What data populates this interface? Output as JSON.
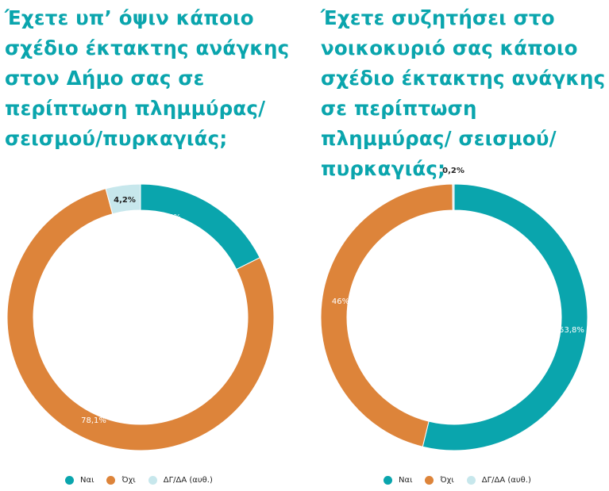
{
  "chart_data": [
    {
      "type": "pie",
      "title": "Έχετε υπ’ όψιν κάποιο σχέδιο έκτακτης ανάγκης στον Δήμο σας σε περίπτωση πλημμύρας/ σεισμού/πυρκαγιάς;",
      "categories": [
        "Ναι",
        "Όχι",
        "ΔΓ/ΔΑ (αυθ.)"
      ],
      "values": [
        17.6,
        78.1,
        4.2
      ],
      "labels": [
        "17,6%",
        "78,1%",
        "4,2%"
      ],
      "colors": [
        "#0aa5ad",
        "#dd843a",
        "#c7e7ec"
      ],
      "legend_position": "bottom"
    },
    {
      "type": "pie",
      "title": "Έχετε συζητήσει στο νοικοκυριό σας κάποιο σχέδιο έκτακτης ανάγκης σε περίπτωση πλημμύρας/ σεισμού/πυρκαγιάς;",
      "categories": [
        "Ναι",
        "Όχι",
        "ΔΓ/ΔΑ (αυθ.)"
      ],
      "values": [
        53.8,
        46,
        0.2
      ],
      "labels": [
        "53,8%",
        "46%",
        "0,2%"
      ],
      "colors": [
        "#0aa5ad",
        "#dd843a",
        "#c7e7ec"
      ],
      "legend_position": "bottom"
    }
  ]
}
